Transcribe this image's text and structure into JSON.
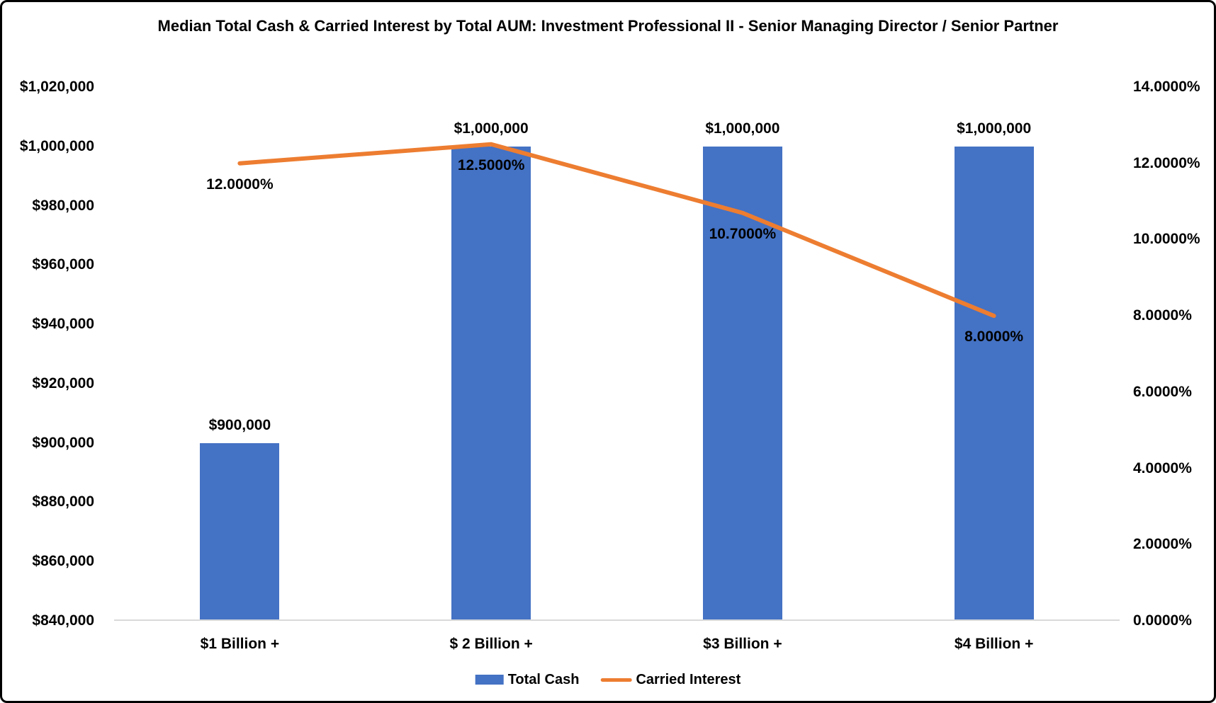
{
  "chart_data": {
    "type": "bar",
    "subtype": "combo-bar-line-dual-axis",
    "title": "Median Total Cash & Carried Interest by Total AUM: Investment Professional II - Senior Managing Director / Senior Partner",
    "categories": [
      "$1 Billion +",
      "$ 2 Billion +",
      "$3 Billion +",
      "$4 Billion +"
    ],
    "series": [
      {
        "name": "Total Cash",
        "type": "bar",
        "axis": "left",
        "color": "#4472C4",
        "values": [
          900000,
          1000000,
          1000000,
          1000000
        ],
        "labels": [
          "$900,000",
          "$1,000,000",
          "$1,000,000",
          "$1,000,000"
        ]
      },
      {
        "name": "Carried Interest",
        "type": "line",
        "axis": "right",
        "color": "#ED7D31",
        "values": [
          12.0,
          12.5,
          10.7,
          8.0
        ],
        "labels": [
          "12.0000%",
          "12.5000%",
          "10.7000%",
          "8.0000%"
        ]
      }
    ],
    "left_axis": {
      "min": 840000,
      "max": 1020000,
      "step": 20000,
      "tick_labels": [
        "$840,000",
        "$860,000",
        "$880,000",
        "$900,000",
        "$920,000",
        "$940,000",
        "$960,000",
        "$980,000",
        "$1,000,000",
        "$1,020,000"
      ]
    },
    "right_axis": {
      "min": 0,
      "max": 14,
      "step": 2,
      "tick_labels": [
        "0.0000%",
        "2.0000%",
        "4.0000%",
        "6.0000%",
        "8.0000%",
        "10.0000%",
        "12.0000%",
        "14.0000%"
      ]
    },
    "legend": {
      "position": "bottom",
      "entries": [
        {
          "label": "Total Cash",
          "swatch": "bar",
          "color": "#4472C4"
        },
        {
          "label": "Carried Interest",
          "swatch": "line",
          "color": "#ED7D31"
        }
      ]
    },
    "grid": false,
    "plot_background": "#FFFFFF",
    "axis_line_color": "#D9D9D9",
    "text_color": "#000000"
  }
}
